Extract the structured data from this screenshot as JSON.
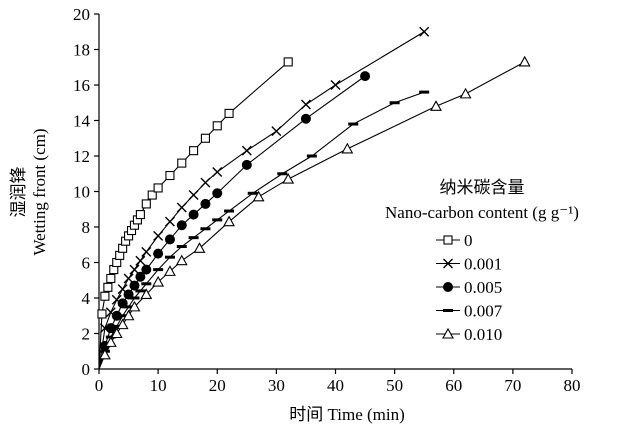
{
  "chart_data": {
    "type": "line",
    "xlabel": "时间 Time (min)",
    "ylabel_cn": "湿润锋",
    "ylabel_en": "Wetting front (cm)",
    "xlim": [
      0,
      80
    ],
    "ylim": [
      0,
      20
    ],
    "xticks": [
      0,
      10,
      20,
      30,
      40,
      50,
      60,
      70,
      80
    ],
    "yticks": [
      0,
      2,
      4,
      6,
      8,
      10,
      12,
      14,
      16,
      18,
      20
    ],
    "grid": false,
    "legend": {
      "title_cn": "纳米碳含量",
      "title_en": "Nano-carbon  content (g g⁻¹)",
      "placement": "right"
    },
    "series": [
      {
        "name": "0",
        "marker": "square-open",
        "x": [
          0,
          0.5,
          1,
          1.5,
          2,
          2.5,
          3,
          3.5,
          4,
          4.5,
          5,
          5.5,
          6,
          6.5,
          7,
          8,
          9,
          10,
          12,
          14,
          16,
          18,
          20,
          22,
          32
        ],
        "y": [
          0,
          3.1,
          4.1,
          4.6,
          5.1,
          5.6,
          6.0,
          6.4,
          6.8,
          7.2,
          7.5,
          7.8,
          8.1,
          8.4,
          8.7,
          9.3,
          9.8,
          10.2,
          10.9,
          11.6,
          12.3,
          13.0,
          13.7,
          14.4,
          17.3
        ]
      },
      {
        "name": "0.001",
        "marker": "x",
        "x": [
          0,
          1,
          2,
          3,
          4,
          5,
          6,
          7,
          8,
          10,
          12,
          14,
          16,
          18,
          20,
          25,
          30,
          35,
          40,
          55
        ],
        "y": [
          0,
          2.3,
          3.2,
          3.9,
          4.5,
          5.1,
          5.6,
          6.1,
          6.6,
          7.5,
          8.3,
          9.1,
          9.8,
          10.5,
          11.1,
          12.3,
          13.4,
          14.9,
          16.0,
          19.0
        ]
      },
      {
        "name": "0.005",
        "marker": "circle-filled",
        "x": [
          0,
          1,
          2,
          3,
          4,
          5,
          6,
          7,
          8,
          10,
          12,
          14,
          16,
          18,
          20,
          25,
          35,
          45
        ],
        "y": [
          0,
          1.3,
          2.3,
          3.0,
          3.7,
          4.2,
          4.7,
          5.2,
          5.6,
          6.5,
          7.3,
          8.1,
          8.7,
          9.3,
          9.9,
          11.5,
          14.1,
          16.5
        ]
      },
      {
        "name": "0.007",
        "marker": "dash",
        "x": [
          0,
          1,
          2,
          3,
          4,
          5,
          6,
          7,
          8,
          10,
          12,
          14,
          16,
          18,
          20,
          22,
          26,
          31,
          36,
          43,
          50,
          55
        ],
        "y": [
          0,
          1.0,
          1.8,
          2.4,
          3.0,
          3.5,
          4.0,
          4.4,
          4.8,
          5.6,
          6.3,
          6.9,
          7.4,
          7.9,
          8.4,
          8.9,
          9.9,
          11.0,
          12.0,
          13.8,
          15.0,
          15.6
        ]
      },
      {
        "name": "0.010",
        "marker": "triangle-open",
        "x": [
          0,
          1,
          2,
          3,
          4,
          5,
          6,
          8,
          10,
          12,
          14,
          17,
          22,
          27,
          32,
          42,
          57,
          62,
          72
        ],
        "y": [
          0,
          0.8,
          1.5,
          2.0,
          2.5,
          3.0,
          3.5,
          4.2,
          4.9,
          5.5,
          6.1,
          6.8,
          8.3,
          9.7,
          10.7,
          12.4,
          14.8,
          15.5,
          17.3
        ]
      }
    ]
  }
}
